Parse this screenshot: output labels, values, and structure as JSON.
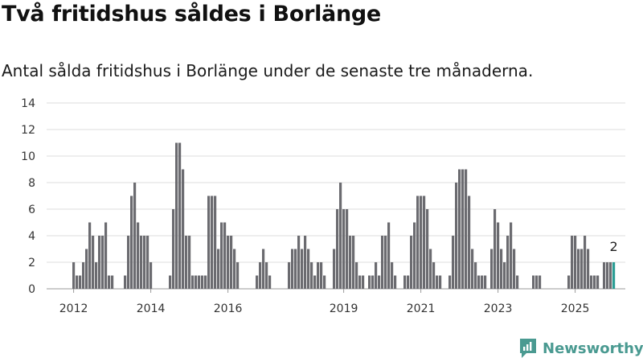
{
  "title": "Två fritidshus såldes i Borlänge",
  "subtitle": "Antal sålda fritidshus i Borlänge under de senaste tre månaderna.",
  "brand": "Newsworthy",
  "colors": {
    "bar": "#6b6b70",
    "highlight": "#2a9d94",
    "brand": "#4a9a91",
    "grid": "#dddddd"
  },
  "chart_data": {
    "type": "bar",
    "title": "",
    "xlabel": "",
    "ylabel": "",
    "ylim": [
      0,
      14
    ],
    "yticks": [
      "0",
      "2",
      "4",
      "6",
      "8",
      "10",
      "12",
      "14"
    ],
    "xticks": [
      "2012",
      "2014",
      "2016",
      "2019",
      "2021",
      "2023",
      "2025"
    ],
    "grid": true,
    "start_month": "2012-01",
    "values": [
      2,
      1,
      1,
      2,
      3,
      5,
      4,
      2,
      4,
      4,
      5,
      1,
      1,
      0,
      0,
      0,
      1,
      4,
      7,
      8,
      5,
      4,
      4,
      4,
      2,
      0,
      0,
      0,
      0,
      0,
      1,
      6,
      11,
      11,
      9,
      4,
      4,
      1,
      1,
      1,
      1,
      1,
      7,
      7,
      7,
      3,
      5,
      5,
      4,
      4,
      3,
      2,
      0,
      0,
      0,
      0,
      0,
      1,
      2,
      3,
      2,
      1,
      0,
      0,
      0,
      0,
      0,
      2,
      3,
      3,
      4,
      3,
      4,
      3,
      2,
      1,
      2,
      2,
      1,
      0,
      0,
      3,
      6,
      8,
      6,
      6,
      4,
      4,
      2,
      1,
      1,
      0,
      1,
      1,
      2,
      1,
      4,
      4,
      5,
      2,
      1,
      0,
      0,
      1,
      1,
      4,
      5,
      7,
      7,
      7,
      6,
      3,
      2,
      1,
      1,
      0,
      0,
      1,
      4,
      8,
      9,
      9,
      9,
      7,
      3,
      2,
      1,
      1,
      1,
      0,
      3,
      6,
      5,
      3,
      2,
      4,
      5,
      3,
      1,
      0,
      0,
      0,
      0,
      1,
      1,
      1,
      0,
      0,
      0,
      0,
      0,
      0,
      0,
      0,
      1,
      4,
      4,
      3,
      3,
      4,
      3,
      1,
      1,
      1,
      0,
      2,
      2,
      2,
      2
    ],
    "highlight_last": true,
    "data_labels": [
      {
        "index": "last",
        "text": "2"
      }
    ]
  }
}
